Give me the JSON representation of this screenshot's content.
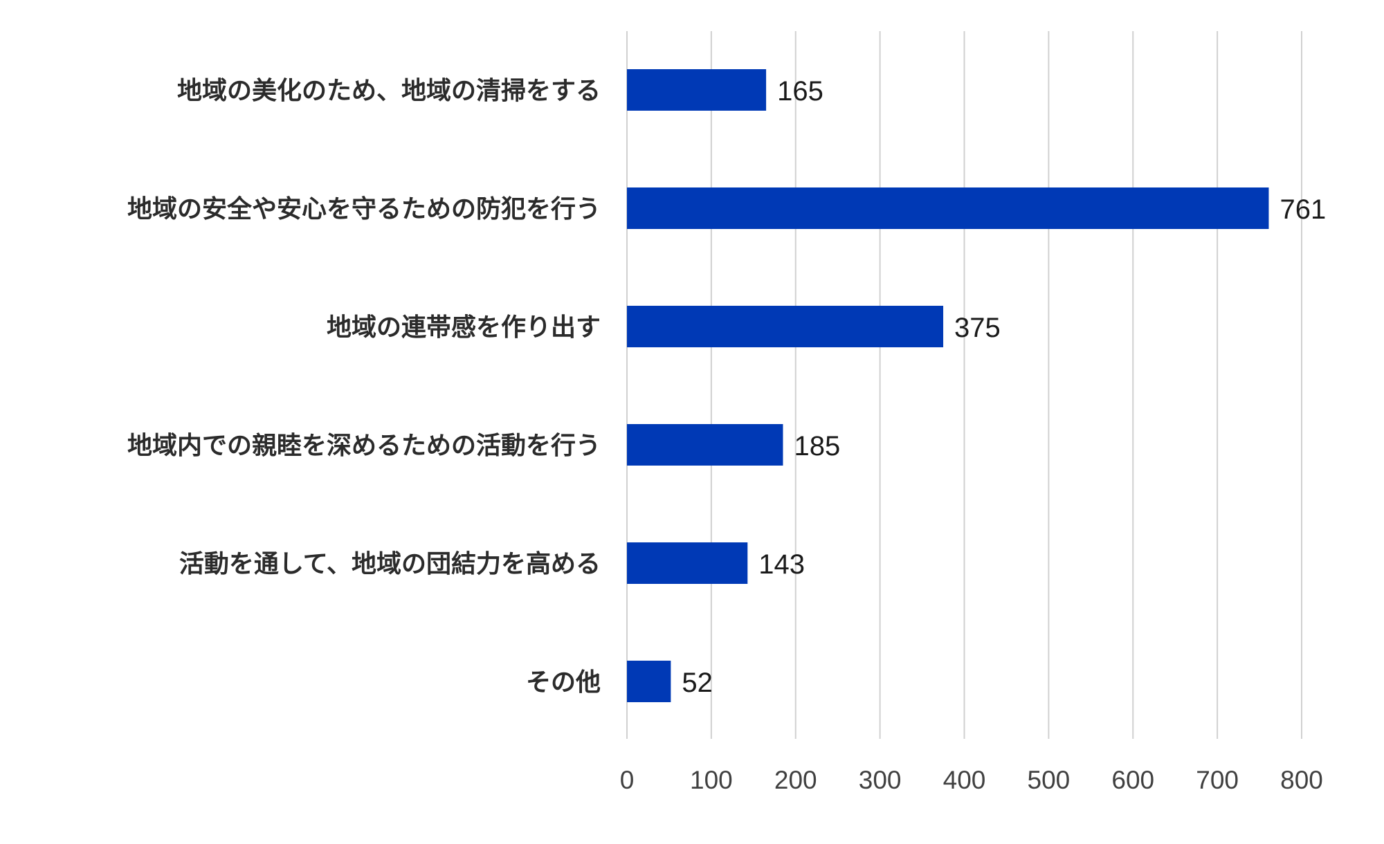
{
  "chart_data": {
    "type": "bar",
    "orientation": "horizontal",
    "categories": [
      "地域の美化のため、地域の清掃をする",
      "地域の安全や安心を守るための防犯を行う",
      "地域の連帯感を作り出す",
      "地域内での親睦を深めるための活動を行う",
      "活動を通して、地域の団結力を高める",
      "その他"
    ],
    "values": [
      165,
      761,
      375,
      185,
      143,
      52
    ],
    "data_labels": [
      "165",
      "761",
      "375",
      "185",
      "143",
      "52"
    ],
    "xlim": [
      0,
      800
    ],
    "x_ticks": [
      0,
      100,
      200,
      300,
      400,
      500,
      600,
      700,
      800
    ],
    "x_tick_labels": [
      "0",
      "100",
      "200",
      "300",
      "400",
      "500",
      "600",
      "700",
      "800"
    ],
    "title": "",
    "xlabel": "",
    "ylabel": "",
    "grid": "vertical",
    "legend": "none",
    "bar_color": "#0039B5",
    "gridline_color": "#D0D0D0"
  }
}
